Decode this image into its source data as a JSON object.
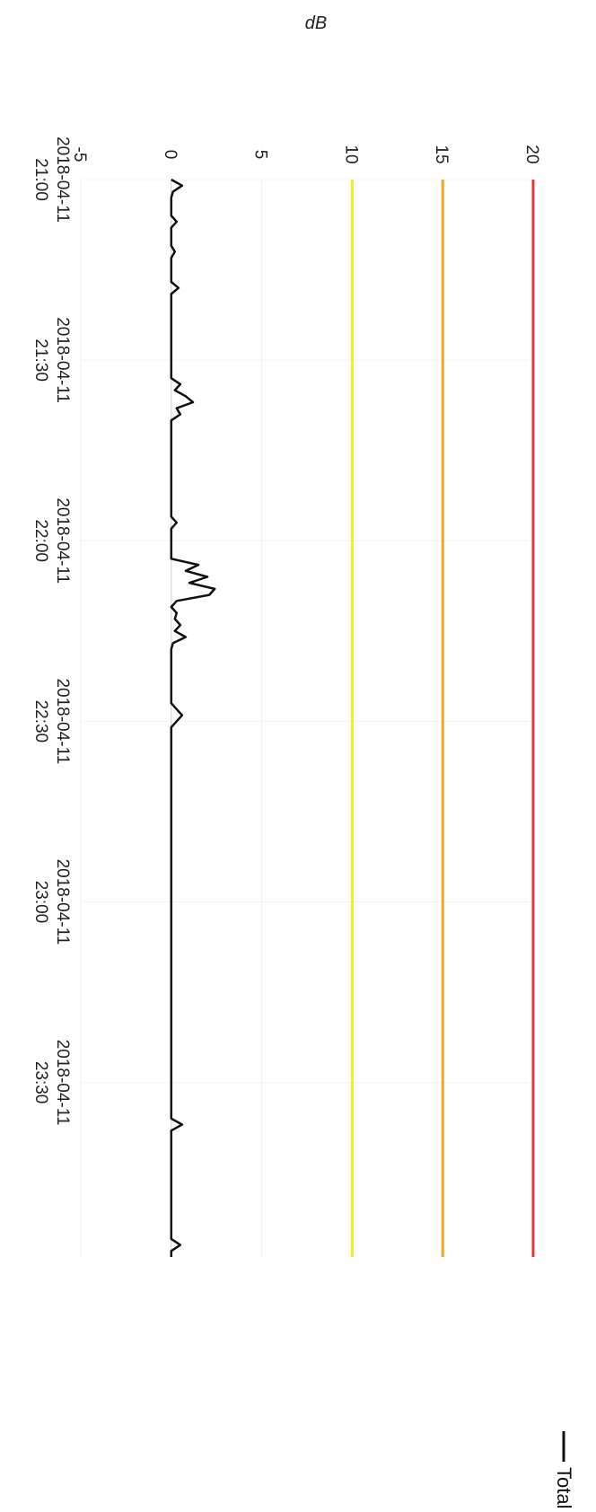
{
  "chart_data": {
    "type": "line",
    "orientation": "rotated-90-clockwise",
    "ylabel": "dB",
    "ylim": [
      -5,
      20
    ],
    "yticks": [
      -5,
      0,
      5,
      10,
      15,
      20
    ],
    "xlim": [
      "2018-04-11 21:00",
      "2018-04-11 23:59"
    ],
    "xticks": [
      {
        "date": "2018-04-11",
        "time": "21:00",
        "value": "2018-04-11 21:00"
      },
      {
        "date": "2018-04-11",
        "time": "21:30",
        "value": "2018-04-11 21:30"
      },
      {
        "date": "2018-04-11",
        "time": "22:00",
        "value": "2018-04-11 22:00"
      },
      {
        "date": "2018-04-11",
        "time": "22:30",
        "value": "2018-04-11 22:30"
      },
      {
        "date": "2018-04-11",
        "time": "23:00",
        "value": "2018-04-11 23:00"
      },
      {
        "date": "2018-04-11",
        "time": "23:30",
        "value": "2018-04-11 23:30"
      }
    ],
    "grid": true,
    "legend": {
      "placement": "right",
      "entries": [
        "Total"
      ]
    },
    "threshold_lines": [
      {
        "value": 20,
        "color": "#e53935"
      },
      {
        "value": 15,
        "color": "#f5a623"
      },
      {
        "value": 10,
        "color": "#f4ec2a"
      }
    ],
    "series": [
      {
        "name": "Total",
        "color": "#111111",
        "points": [
          [
            "2018-04-11 21:00",
            0
          ],
          [
            "2018-04-11 21:01",
            0.6
          ],
          [
            "2018-04-11 21:02",
            0.1
          ],
          [
            "2018-04-11 21:03",
            0
          ],
          [
            "2018-04-11 21:06",
            0
          ],
          [
            "2018-04-11 21:07",
            0.3
          ],
          [
            "2018-04-11 21:08",
            0
          ],
          [
            "2018-04-11 21:11",
            0
          ],
          [
            "2018-04-11 21:12",
            0.2
          ],
          [
            "2018-04-11 21:13",
            0
          ],
          [
            "2018-04-11 21:17",
            0
          ],
          [
            "2018-04-11 21:18",
            0.4
          ],
          [
            "2018-04-11 21:19",
            0
          ],
          [
            "2018-04-11 21:33",
            0
          ],
          [
            "2018-04-11 21:34",
            0.5
          ],
          [
            "2018-04-11 21:35",
            0.2
          ],
          [
            "2018-04-11 21:36",
            0.8
          ],
          [
            "2018-04-11 21:37",
            1.2
          ],
          [
            "2018-04-11 21:38",
            0.3
          ],
          [
            "2018-04-11 21:39",
            0.5
          ],
          [
            "2018-04-11 21:40",
            0
          ],
          [
            "2018-04-11 21:56",
            0
          ],
          [
            "2018-04-11 21:57",
            0.3
          ],
          [
            "2018-04-11 21:58",
            0
          ],
          [
            "2018-04-11 22:03",
            0
          ],
          [
            "2018-04-11 22:04",
            1.5
          ],
          [
            "2018-04-11 22:05",
            0.8
          ],
          [
            "2018-04-11 22:06",
            2.0
          ],
          [
            "2018-04-11 22:07",
            1.0
          ],
          [
            "2018-04-11 22:08",
            2.4
          ],
          [
            "2018-04-11 22:09",
            2.1
          ],
          [
            "2018-04-11 22:10",
            0.3
          ],
          [
            "2018-04-11 22:11",
            0
          ],
          [
            "2018-04-11 22:12",
            0.3
          ],
          [
            "2018-04-11 22:13",
            0.2
          ],
          [
            "2018-04-11 22:14",
            0.5
          ],
          [
            "2018-04-11 22:15",
            0.2
          ],
          [
            "2018-04-11 22:16",
            0.8
          ],
          [
            "2018-04-11 22:17",
            0.1
          ],
          [
            "2018-04-11 22:18",
            0
          ],
          [
            "2018-04-11 22:27",
            0
          ],
          [
            "2018-04-11 22:28",
            0.3
          ],
          [
            "2018-04-11 22:29",
            0.6
          ],
          [
            "2018-04-11 22:31",
            0
          ],
          [
            "2018-04-11 23:36",
            0
          ],
          [
            "2018-04-11 23:37",
            0.6
          ],
          [
            "2018-04-11 23:38",
            0
          ],
          [
            "2018-04-11 23:56",
            0
          ],
          [
            "2018-04-11 23:57",
            0.5
          ],
          [
            "2018-04-11 23:58",
            0
          ],
          [
            "2018-04-11 23:59",
            0
          ]
        ]
      }
    ]
  }
}
